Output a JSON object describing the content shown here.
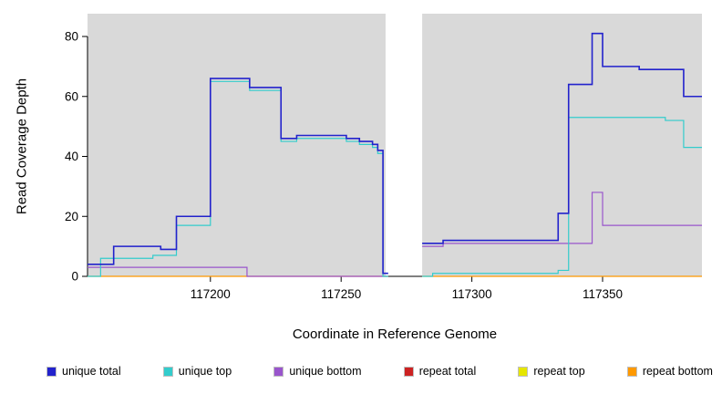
{
  "figure": {
    "background": "#ffffff",
    "panel_background": "#d9d9d9",
    "gap_color": "#ffffff"
  },
  "chart_data": {
    "type": "line",
    "style": "step-after",
    "title": "",
    "xlabel": "Coordinate in Reference Genome",
    "ylabel": "Read Coverage Depth",
    "xlim": [
      117153,
      117388
    ],
    "ylim": [
      0,
      87
    ],
    "xticks": [
      117200,
      117250,
      117300,
      117350
    ],
    "yticks": [
      0,
      20,
      40,
      60,
      80
    ],
    "grid": false,
    "legend_position": "bottom",
    "gap_region": {
      "from": 117267,
      "to": 117281
    },
    "series": [
      {
        "name": "repeat total",
        "color": "#cc2222",
        "width": 1,
        "segments": [
          [
            [
              117153,
              0
            ],
            [
              117268,
              0
            ]
          ],
          [
            [
              117281,
              0
            ],
            [
              117388,
              0
            ]
          ]
        ]
      },
      {
        "name": "repeat top",
        "color": "#e6e600",
        "width": 1,
        "segments": [
          [
            [
              117153,
              0
            ],
            [
              117268,
              0
            ]
          ],
          [
            [
              117281,
              0
            ],
            [
              117388,
              0
            ]
          ]
        ]
      },
      {
        "name": "repeat bottom",
        "color": "#ff9900",
        "width": 1.3,
        "segments": [
          [
            [
              117153,
              0
            ],
            [
              117268,
              0
            ]
          ],
          [
            [
              117281,
              0
            ],
            [
              117388,
              0
            ]
          ]
        ]
      },
      {
        "name": "unique bottom",
        "color": "#9955cc",
        "width": 1.2,
        "segments": [
          [
            [
              117153,
              3
            ],
            [
              117214,
              0
            ],
            [
              117268,
              0
            ]
          ],
          [
            [
              117281,
              10
            ],
            [
              117289,
              11
            ],
            [
              117346,
              28
            ],
            [
              117350,
              17
            ],
            [
              117388,
              17
            ]
          ]
        ]
      },
      {
        "name": "unique top",
        "color": "#33cccc",
        "width": 1.2,
        "segments": [
          [
            [
              117153,
              0
            ],
            [
              117158,
              6
            ],
            [
              117178,
              7
            ],
            [
              117187,
              17
            ],
            [
              117200,
              65
            ],
            [
              117215,
              62
            ],
            [
              117227,
              45
            ],
            [
              117233,
              46
            ],
            [
              117252,
              45
            ],
            [
              117257,
              44
            ],
            [
              117262,
              43
            ],
            [
              117264,
              41
            ],
            [
              117266,
              0
            ],
            [
              117268,
              0
            ]
          ],
          [
            [
              117281,
              0
            ],
            [
              117285,
              1
            ],
            [
              117333,
              2
            ],
            [
              117337,
              53
            ],
            [
              117374,
              52
            ],
            [
              117381,
              43
            ],
            [
              117388,
              43
            ]
          ]
        ]
      },
      {
        "name": "unique total",
        "color": "#2222cc",
        "width": 1.6,
        "segments": [
          [
            [
              117153,
              4
            ],
            [
              117163,
              10
            ],
            [
              117181,
              9
            ],
            [
              117187,
              20
            ],
            [
              117200,
              66
            ],
            [
              117215,
              63
            ],
            [
              117227,
              46
            ],
            [
              117233,
              47
            ],
            [
              117252,
              46
            ],
            [
              117257,
              45
            ],
            [
              117262,
              44
            ],
            [
              117264,
              42
            ],
            [
              117266,
              1
            ],
            [
              117268,
              1
            ]
          ],
          [
            [
              117281,
              11
            ],
            [
              117289,
              12
            ],
            [
              117333,
              21
            ],
            [
              117337,
              64
            ],
            [
              117346,
              81
            ],
            [
              117350,
              70
            ],
            [
              117364,
              69
            ],
            [
              117381,
              60
            ],
            [
              117388,
              60
            ]
          ]
        ]
      }
    ]
  },
  "legend": {
    "items": [
      {
        "label": "unique total",
        "color": "#2222cc"
      },
      {
        "label": "unique top",
        "color": "#33cccc"
      },
      {
        "label": "unique bottom",
        "color": "#9955cc"
      },
      {
        "label": "repeat total",
        "color": "#cc2222"
      },
      {
        "label": "repeat top",
        "color": "#e6e600"
      },
      {
        "label": "repeat bottom",
        "color": "#ff9900"
      }
    ]
  }
}
